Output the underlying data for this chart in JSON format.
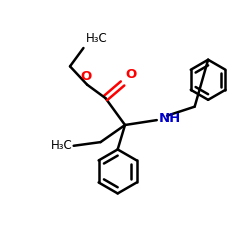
{
  "background_color": "#ffffff",
  "bond_color": "#000000",
  "oxygen_color": "#ff0000",
  "nitrogen_color": "#0000cd",
  "line_width": 1.8,
  "font_size": 8.5,
  "figsize": [
    2.5,
    2.5
  ],
  "dpi": 100,
  "xlim": [
    0,
    10
  ],
  "ylim": [
    0,
    10
  ]
}
